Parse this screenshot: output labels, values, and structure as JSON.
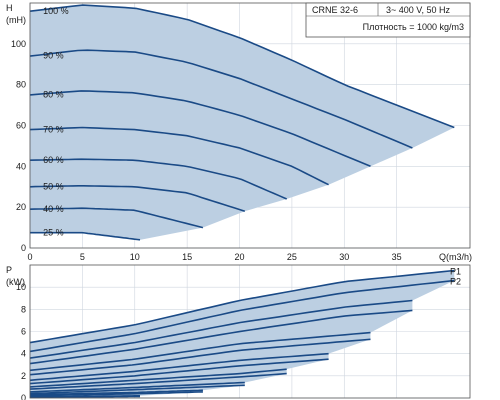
{
  "chart_data": [
    {
      "type": "line",
      "ylabel": "H",
      "yunit": "(mH)",
      "xlabel": "Q(m3/h)",
      "xlim": [
        0,
        42
      ],
      "ylim": [
        0,
        120
      ],
      "xticks": [
        0,
        5,
        10,
        15,
        20,
        25,
        30,
        35
      ],
      "yticks": [
        0,
        20,
        40,
        60,
        80,
        100
      ],
      "info": [
        "CRNE 32-6",
        "3~ 400 V, 50 Hz",
        "Плотность = 1000 kg/m3"
      ],
      "operating_area": true,
      "series": [
        {
          "name": "100 %",
          "x": [
            0,
            5,
            10,
            15,
            20,
            25,
            30,
            35,
            40.5
          ],
          "y": [
            116,
            119,
            117.5,
            112,
            103,
            92,
            80,
            70,
            59
          ]
        },
        {
          "name": "90 %",
          "x": [
            0,
            5,
            10,
            15,
            20,
            25,
            30,
            36.5
          ],
          "y": [
            94,
            97,
            96,
            91,
            83,
            73,
            63,
            49
          ]
        },
        {
          "name": "80 %",
          "x": [
            0,
            5,
            10,
            15,
            20,
            25,
            32.5
          ],
          "y": [
            75,
            77,
            76,
            72,
            65,
            56,
            40
          ]
        },
        {
          "name": "70 %",
          "x": [
            0,
            5,
            10,
            15,
            20,
            25,
            28.5
          ],
          "y": [
            58,
            59,
            58,
            55,
            49,
            40,
            31
          ]
        },
        {
          "name": "60 %",
          "x": [
            0,
            5,
            10,
            15,
            20,
            24.5
          ],
          "y": [
            43,
            43.5,
            43,
            40,
            34,
            24
          ]
        },
        {
          "name": "50 %",
          "x": [
            0,
            5,
            10,
            15,
            20.5
          ],
          "y": [
            30,
            30.5,
            30,
            27,
            18
          ]
        },
        {
          "name": "40 %",
          "x": [
            0,
            5,
            10,
            16.5
          ],
          "y": [
            19,
            19.5,
            18.5,
            10
          ]
        },
        {
          "name": "25 %",
          "x": [
            0,
            5,
            10.5
          ],
          "y": [
            7.5,
            7.5,
            4
          ]
        }
      ]
    },
    {
      "type": "line",
      "ylabel": "P",
      "yunit": "(kW)",
      "xlim": [
        0,
        42
      ],
      "ylim": [
        0,
        12
      ],
      "yticks": [
        0,
        2,
        4,
        6,
        8,
        10
      ],
      "operating_area": true,
      "series": [
        {
          "name": "P1",
          "x": [
            0,
            10,
            20,
            30,
            40.5
          ],
          "y": [
            5.0,
            6.6,
            8.8,
            10.5,
            11.5
          ]
        },
        {
          "name": "P2",
          "x": [
            0,
            10,
            20,
            30,
            40.5
          ],
          "y": [
            4.2,
            5.8,
            7.9,
            9.5,
            10.6
          ]
        },
        {
          "x": [
            0,
            10,
            20,
            30,
            36.5
          ],
          "y": [
            3.6,
            5.0,
            6.8,
            8.2,
            8.8
          ]
        },
        {
          "x": [
            0,
            10,
            20,
            30,
            36.5
          ],
          "y": [
            3.1,
            4.4,
            6.0,
            7.4,
            7.9
          ]
        },
        {
          "x": [
            0,
            10,
            20,
            32.5
          ],
          "y": [
            2.5,
            3.5,
            4.9,
            5.9
          ]
        },
        {
          "x": [
            0,
            10,
            20,
            32.5
          ],
          "y": [
            2.1,
            3.0,
            4.3,
            5.3
          ]
        },
        {
          "x": [
            0,
            10,
            20,
            28.5
          ],
          "y": [
            1.6,
            2.4,
            3.4,
            4.0
          ]
        },
        {
          "x": [
            0,
            10,
            20,
            28.5
          ],
          "y": [
            1.3,
            2.0,
            2.9,
            3.5
          ]
        },
        {
          "x": [
            0,
            10,
            20,
            24.5
          ],
          "y": [
            1.0,
            1.6,
            2.2,
            2.6
          ]
        },
        {
          "x": [
            0,
            10,
            20,
            24.5
          ],
          "y": [
            0.8,
            1.3,
            1.9,
            2.2
          ]
        },
        {
          "x": [
            0,
            10,
            20.5
          ],
          "y": [
            0.55,
            0.95,
            1.4
          ]
        },
        {
          "x": [
            0,
            10,
            20.5
          ],
          "y": [
            0.4,
            0.75,
            1.15
          ]
        },
        {
          "x": [
            0,
            10,
            16.5
          ],
          "y": [
            0.3,
            0.5,
            0.7
          ]
        },
        {
          "x": [
            0,
            10,
            16.5
          ],
          "y": [
            0.2,
            0.38,
            0.55
          ]
        },
        {
          "x": [
            0,
            10.5
          ],
          "y": [
            0.1,
            0.2
          ]
        },
        {
          "x": [
            0,
            10.5
          ],
          "y": [
            0.06,
            0.14
          ]
        }
      ]
    }
  ],
  "colors": {
    "area": "#bccfe2",
    "curve": "#1a4a86",
    "grid": "#cfd6df",
    "frame": "#555555"
  }
}
